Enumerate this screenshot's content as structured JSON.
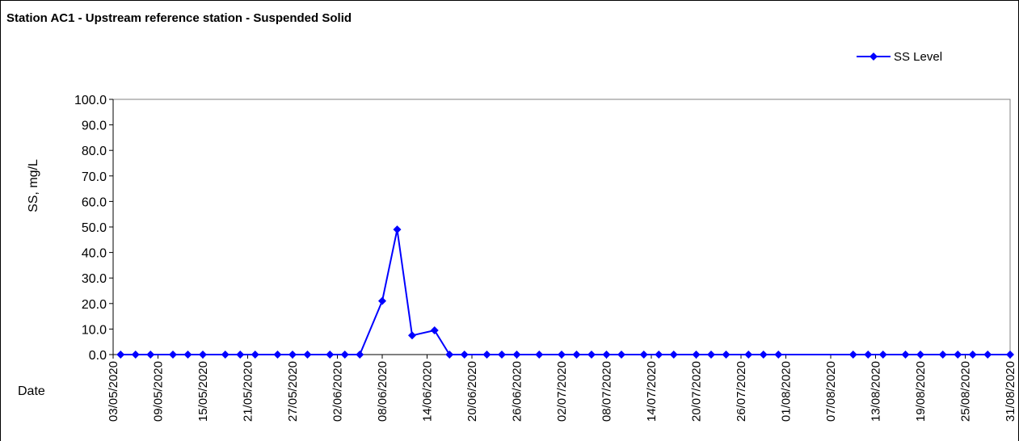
{
  "chart_data": {
    "type": "line",
    "title": "Station AC1 - Upstream reference station - Suspended Solid",
    "y_label": "SS, mg/L",
    "x_label": "Date",
    "x": [
      "04/05/2020",
      "06/05/2020",
      "08/05/2020",
      "11/05/2020",
      "13/05/2020",
      "15/05/2020",
      "18/05/2020",
      "20/05/2020",
      "22/05/2020",
      "25/05/2020",
      "27/05/2020",
      "29/05/2020",
      "01/06/2020",
      "03/06/2020",
      "05/06/2020",
      "08/06/2020",
      "10/06/2020",
      "12/06/2020",
      "15/06/2020",
      "17/06/2020",
      "19/06/2020",
      "22/06/2020",
      "24/06/2020",
      "26/06/2020",
      "29/06/2020",
      "02/07/2020",
      "04/07/2020",
      "06/07/2020",
      "08/07/2020",
      "10/07/2020",
      "13/07/2020",
      "15/07/2020",
      "17/07/2020",
      "20/07/2020",
      "22/07/2020",
      "24/07/2020",
      "27/07/2020",
      "29/07/2020",
      "31/07/2020",
      "10/08/2020",
      "12/08/2020",
      "14/08/2020",
      "17/08/2020",
      "19/08/2020",
      "22/08/2020",
      "24/08/2020",
      "26/08/2020",
      "28/08/2020",
      "31/08/2020"
    ],
    "series": [
      {
        "name": "SS Level",
        "color": "#0000ff",
        "values": [
          0,
          0,
          0,
          0,
          0,
          0,
          0,
          0,
          0,
          0,
          0,
          0,
          0,
          0,
          0,
          21,
          49,
          7.5,
          9.5,
          0,
          0,
          0,
          0,
          0,
          0,
          0,
          0,
          0,
          0,
          0,
          0,
          0,
          0,
          0,
          0,
          0,
          0,
          0,
          0,
          0,
          0,
          0,
          0,
          0,
          0,
          0,
          0,
          0,
          0
        ]
      }
    ],
    "xlim": [
      "03/05/2020",
      "31/08/2020"
    ],
    "xticks": [
      "03/05/2020",
      "09/05/2020",
      "15/05/2020",
      "21/05/2020",
      "27/05/2020",
      "02/06/2020",
      "08/06/2020",
      "14/06/2020",
      "20/06/2020",
      "26/06/2020",
      "02/07/2020",
      "08/07/2020",
      "14/07/2020",
      "20/07/2020",
      "26/07/2020",
      "01/08/2020",
      "07/08/2020",
      "13/08/2020",
      "19/08/2020",
      "25/08/2020",
      "31/08/2020"
    ],
    "ylim": [
      0,
      100
    ],
    "yticks": [
      {
        "value": 0,
        "label": "0.0"
      },
      {
        "value": 10,
        "label": "10.0"
      },
      {
        "value": 20,
        "label": "20.0"
      },
      {
        "value": 30,
        "label": "30.0"
      },
      {
        "value": 40,
        "label": "40.0"
      },
      {
        "value": 50,
        "label": "50.0"
      },
      {
        "value": 60,
        "label": "60.0"
      },
      {
        "value": 70,
        "label": "70.0"
      },
      {
        "value": 80,
        "label": "80.0"
      },
      {
        "value": 90,
        "label": "90.0"
      },
      {
        "value": 100,
        "label": "100.0"
      }
    ],
    "legend": "top-right"
  }
}
